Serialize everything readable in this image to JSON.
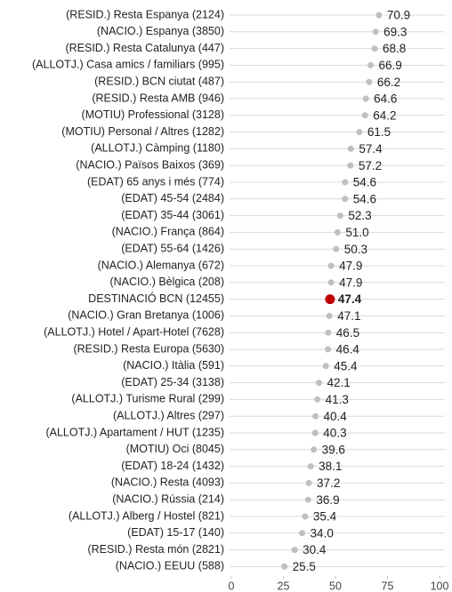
{
  "chart_data": {
    "type": "dot",
    "categories": [
      "(RESID.) Resta Espanya (2124)",
      "(NACIO.) Espanya (3850)",
      "(RESID.) Resta Catalunya (447)",
      "(ALLOTJ.) Casa amics / familiars (995)",
      "(RESID.) BCN ciutat (487)",
      "(RESID.) Resta AMB (946)",
      "(MOTIU) Professional (3128)",
      "(MOTIU) Personal / Altres (1282)",
      "(ALLOTJ.) Càmping (1180)",
      "(NACIO.) Països Baixos (369)",
      "(EDAT) 65 anys i més (774)",
      "(EDAT) 45-54 (2484)",
      "(EDAT) 35-44 (3061)",
      "(NACIO.) França (864)",
      "(EDAT) 55-64 (1426)",
      "(NACIO.) Alemanya (672)",
      "(NACIO.) Bèlgica (208)",
      "DESTINACIÓ BCN (12455)",
      "(NACIO.) Gran Bretanya (1006)",
      "(ALLOTJ.) Hotel / Apart-Hotel (7628)",
      "(RESID.) Resta Europa (5630)",
      "(NACIO.) Itàlia (591)",
      "(EDAT) 25-34 (3138)",
      "(ALLOTJ.) Turisme Rural (299)",
      "(ALLOTJ.) Altres (297)",
      "(ALLOTJ.) Apartament / HUT (1235)",
      "(MOTIU) Oci (8045)",
      "(EDAT) 18-24 (1432)",
      "(NACIO.) Resta (4093)",
      "(NACIO.) Rússia (214)",
      "(ALLOTJ.) Alberg / Hostel (821)",
      "(EDAT) 15-17 (140)",
      "(RESID.) Resta món (2821)",
      "(NACIO.) EEUU (588)"
    ],
    "values": [
      70.9,
      69.3,
      68.8,
      66.9,
      66.2,
      64.6,
      64.2,
      61.5,
      57.4,
      57.2,
      54.6,
      54.6,
      52.3,
      51.0,
      50.3,
      47.9,
      47.9,
      47.4,
      47.1,
      46.5,
      46.4,
      45.4,
      42.1,
      41.3,
      40.4,
      40.3,
      39.6,
      38.1,
      37.2,
      36.9,
      35.4,
      34.0,
      30.4,
      25.5
    ],
    "value_labels": [
      "70.9",
      "69.3",
      "68.8",
      "66.9",
      "66.2",
      "64.6",
      "64.2",
      "61.5",
      "57.4",
      "57.2",
      "54.6",
      "54.6",
      "52.3",
      "51.0",
      "50.3",
      "47.9",
      "47.9",
      "47.4",
      "47.1",
      "46.5",
      "46.4",
      "45.4",
      "42.1",
      "41.3",
      "40.4",
      "40.3",
      "39.6",
      "38.1",
      "37.2",
      "36.9",
      "35.4",
      "34.0",
      "30.4",
      "25.5"
    ],
    "color": "#bfbfbf",
    "highlight": {
      "index": 17,
      "color": "#c00000"
    },
    "xlim": [
      0,
      100
    ],
    "xticks": [
      0,
      25,
      50,
      75,
      100
    ],
    "grid": true
  }
}
